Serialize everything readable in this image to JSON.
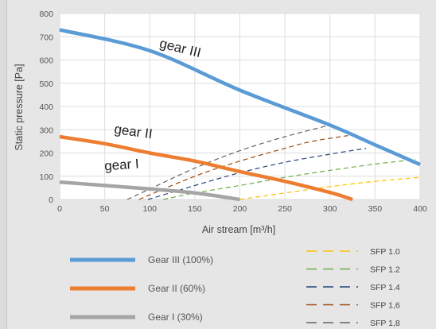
{
  "chart_data": {
    "type": "line",
    "xlabel": "Air stream [m³/h]",
    "ylabel": "Static pressure [Pa]",
    "xlim": [
      0,
      400
    ],
    "ylim": [
      0,
      800
    ],
    "x_ticks": [
      0,
      50,
      100,
      150,
      200,
      250,
      300,
      350,
      400
    ],
    "y_ticks": [
      0,
      100,
      200,
      300,
      400,
      500,
      600,
      700,
      800
    ],
    "grid": true,
    "legend_position": "bottom",
    "series": [
      {
        "name": "Gear III (100%)",
        "label_on_curve": "gear III",
        "color": "#5b9bd5",
        "style": "solid",
        "points": [
          [
            0,
            730
          ],
          [
            100,
            640
          ],
          [
            200,
            470
          ],
          [
            300,
            320
          ],
          [
            350,
            235
          ],
          [
            400,
            150
          ]
        ]
      },
      {
        "name": "Gear II (60%)",
        "label_on_curve": "gear II",
        "color": "#ed7d31",
        "style": "solid",
        "points": [
          [
            0,
            270
          ],
          [
            50,
            240
          ],
          [
            100,
            200
          ],
          [
            150,
            165
          ],
          [
            200,
            120
          ],
          [
            250,
            78
          ],
          [
            300,
            30
          ],
          [
            325,
            0
          ]
        ]
      },
      {
        "name": "Gear I (30%)",
        "label_on_curve": "gear I",
        "color": "#a5a5a5",
        "style": "solid",
        "points": [
          [
            0,
            75
          ],
          [
            50,
            60
          ],
          [
            100,
            45
          ],
          [
            150,
            28
          ],
          [
            200,
            0
          ]
        ]
      },
      {
        "name": "SFP 1.0",
        "color": "#ffc000",
        "style": "dashed",
        "points": [
          [
            200,
            0
          ],
          [
            250,
            28
          ],
          [
            300,
            55
          ],
          [
            350,
            78
          ],
          [
            400,
            95
          ]
        ]
      },
      {
        "name": "SFP 1.2",
        "color": "#70ad47",
        "style": "dashed",
        "points": [
          [
            115,
            0
          ],
          [
            150,
            28
          ],
          [
            200,
            60
          ],
          [
            250,
            95
          ],
          [
            300,
            125
          ],
          [
            350,
            152
          ],
          [
            395,
            172
          ]
        ]
      },
      {
        "name": "SFP 1.4",
        "color": "#264478",
        "style": "dashed",
        "points": [
          [
            98,
            0
          ],
          [
            150,
            60
          ],
          [
            200,
            115
          ],
          [
            250,
            160
          ],
          [
            300,
            195
          ],
          [
            340,
            220
          ]
        ]
      },
      {
        "name": "SFP 1,6",
        "color": "#9e480e",
        "style": "dashed",
        "points": [
          [
            88,
            0
          ],
          [
            150,
            100
          ],
          [
            200,
            165
          ],
          [
            250,
            220
          ],
          [
            280,
            250
          ],
          [
            320,
            275
          ]
        ]
      },
      {
        "name": "SFP 1,8",
        "color": "#636363",
        "style": "dashed",
        "points": [
          [
            75,
            0
          ],
          [
            100,
            45
          ],
          [
            150,
            135
          ],
          [
            200,
            210
          ],
          [
            250,
            270
          ],
          [
            300,
            320
          ]
        ]
      }
    ]
  }
}
